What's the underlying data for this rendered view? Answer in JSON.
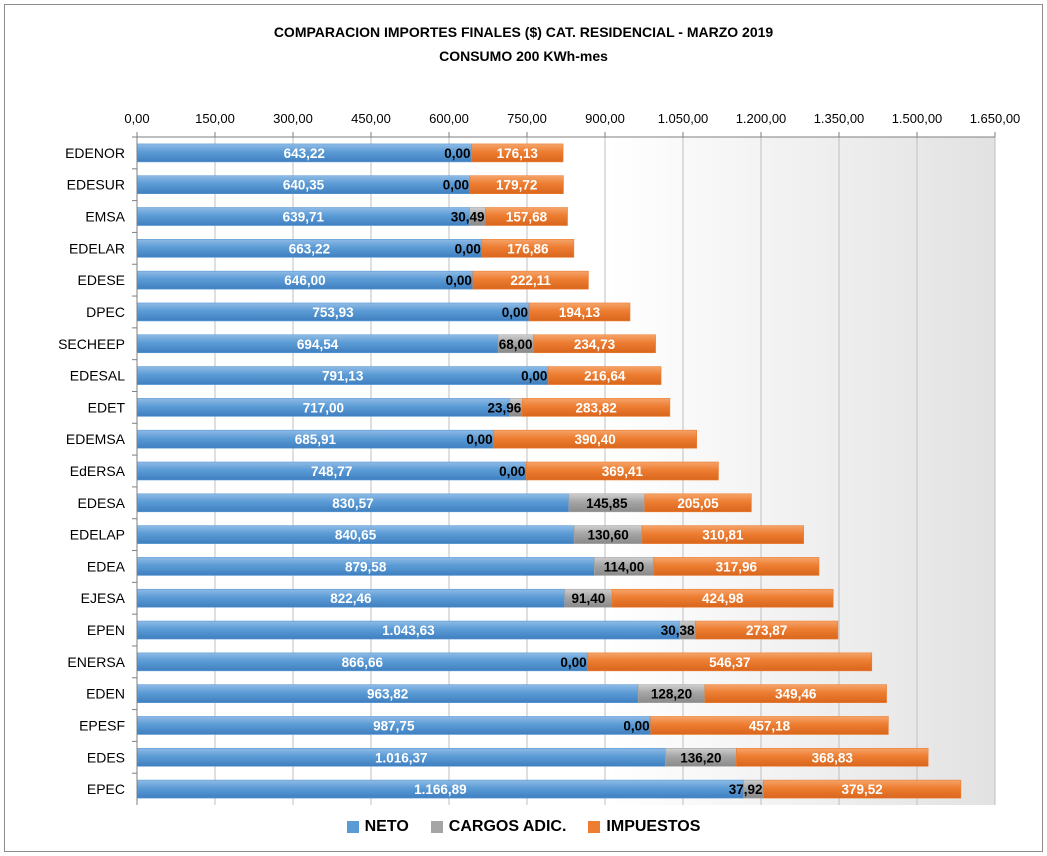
{
  "chart_data": {
    "type": "bar",
    "orientation": "horizontal",
    "stacked": true,
    "title": "COMPARACION IMPORTES FINALES ($) CAT. RESIDENCIAL -  MARZO 2019",
    "subtitle": "CONSUMO 200 KWh-mes",
    "x_ticks": [
      "0,00",
      "150,00",
      "300,00",
      "450,00",
      "600,00",
      "750,00",
      "900,00",
      "1.050,00",
      "1.200,00",
      "1.350,00",
      "1.500,00",
      "1.650,00"
    ],
    "xlim": [
      0,
      1650
    ],
    "x_tick_step": 150,
    "x_axis_position": "top",
    "grid": true,
    "legend_position": "bottom",
    "categories": [
      "EDENOR",
      "EDESUR",
      "EMSA",
      "EDELAR",
      "EDESE",
      "DPEC",
      "SECHEEP",
      "EDESAL",
      "EDET",
      "EDEMSA",
      "EdERSA",
      "EDESA",
      "EDELAP",
      "EDEA",
      "EJESA",
      "EPEN",
      "ENERSA",
      "EDEN",
      "EPESF",
      "EDES",
      "EPEC"
    ],
    "series": [
      {
        "name": "NETO",
        "color": "#5b9bd5",
        "values": [
          643.22,
          640.35,
          639.71,
          663.22,
          646.0,
          753.93,
          694.54,
          791.13,
          717.0,
          685.91,
          748.77,
          830.57,
          840.65,
          879.58,
          822.46,
          1043.63,
          866.66,
          963.82,
          987.75,
          1016.37,
          1166.89
        ],
        "labels": [
          "643,22",
          "640,35",
          "639,71",
          "663,22",
          "646,00",
          "753,93",
          "694,54",
          "791,13",
          "717,00",
          "685,91",
          "748,77",
          "830,57",
          "840,65",
          "879,58",
          "822,46",
          "1.043,63",
          "866,66",
          "963,82",
          "987,75",
          "1.016,37",
          "1.166,89"
        ]
      },
      {
        "name": "CARGOS ADIC.",
        "color": "#a5a5a5",
        "values": [
          0,
          0,
          30.49,
          0,
          0,
          0,
          68.0,
          0,
          23.96,
          0,
          0,
          145.85,
          130.6,
          114.0,
          91.4,
          30.38,
          0,
          128.2,
          0,
          136.2,
          37.92
        ],
        "labels": [
          "0,00",
          "0,00",
          "30,49",
          "0,00",
          "0,00",
          "0,00",
          "68,00",
          "0,00",
          "23,96",
          "0,00",
          "0,00",
          "145,85",
          "130,60",
          "114,00",
          "91,40",
          "30,38",
          "0,00",
          "128,20",
          "0,00",
          "136,20",
          "37,92"
        ]
      },
      {
        "name": "IMPUESTOS",
        "color": "#ed7d31",
        "values": [
          176.13,
          179.72,
          157.68,
          176.86,
          222.11,
          194.13,
          234.73,
          216.64,
          283.82,
          390.4,
          369.41,
          205.05,
          310.81,
          317.96,
          424.98,
          273.87,
          546.37,
          349.46,
          457.18,
          368.83,
          379.52
        ],
        "labels": [
          "176,13",
          "179,72",
          "157,68",
          "176,86",
          "222,11",
          "194,13",
          "234,73",
          "216,64",
          "283,82",
          "390,40",
          "369,41",
          "205,05",
          "310,81",
          "317,96",
          "424,98",
          "273,87",
          "546,37",
          "349,46",
          "457,18",
          "368,83",
          "379,52"
        ]
      }
    ]
  }
}
